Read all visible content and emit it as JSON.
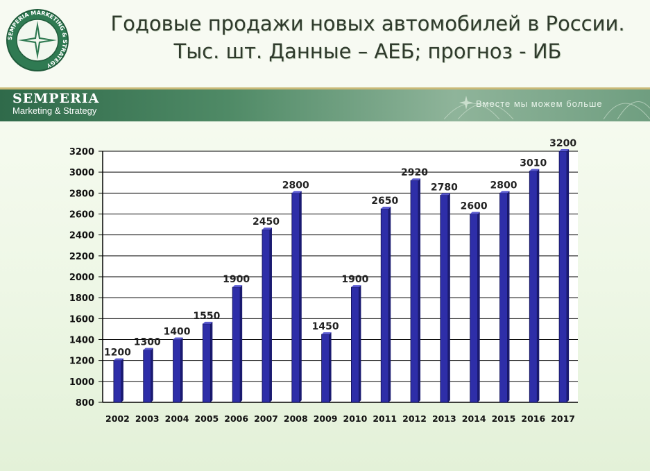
{
  "header": {
    "title_line1": "Годовые продажи новых автомобилей в России.",
    "title_line2": "Тыс. шт. Данные – АЕБ; прогноз - ИБ"
  },
  "brand": {
    "logo_ring_text": "SEMPERIA MARKETING & STRATEGY",
    "name": "SEMPERIA",
    "subtitle": "Marketing & Strategy",
    "slogan": "Вместе мы можем больше"
  },
  "colors": {
    "bar": "#2e2ea8",
    "bar_side": "#1a1a70",
    "grid": "#000000",
    "accent_green": "#2f6a4a"
  },
  "chart_data": {
    "type": "bar",
    "title": "Годовые продажи новых автомобилей в России. Тыс. шт. Данные – АЕБ; прогноз - ИБ",
    "categories": [
      "2002",
      "2003",
      "2004",
      "2005",
      "2006",
      "2007",
      "2008",
      "2009",
      "2010",
      "2011",
      "2012",
      "2013",
      "2014",
      "2015",
      "2016",
      "2017"
    ],
    "values": [
      1200,
      1300,
      1400,
      1550,
      1900,
      2450,
      2800,
      1450,
      1900,
      2650,
      2920,
      2780,
      2600,
      2800,
      3010,
      3200
    ],
    "ylim": [
      800,
      3200
    ],
    "ytick_step": 200,
    "yticks": [
      "800",
      "1000",
      "1200",
      "1400",
      "1600",
      "1800",
      "2000",
      "2200",
      "2400",
      "2600",
      "2800",
      "3000",
      "3200"
    ],
    "grid": true,
    "legend": "none",
    "xlabel": "",
    "ylabel": ""
  }
}
